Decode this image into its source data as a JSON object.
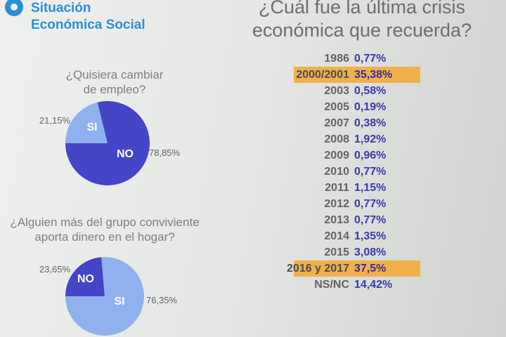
{
  "brand": {
    "line1": "Situación",
    "line2": "Económica Social"
  },
  "colors": {
    "dark": "#4545c8",
    "light": "#8fb2ee",
    "highlight": "#f0b14a",
    "brand": "#2a8fd6",
    "value": "#3a3aa8"
  },
  "chart_data": [
    {
      "type": "pie",
      "title": "¿Quisiera cambiar de empleo?",
      "title_lines": [
        "¿Quisiera cambiar",
        "de empleo?"
      ],
      "slices": [
        {
          "label": "SI",
          "value": 21.15,
          "display": "21,15%",
          "color": "#8fb2ee"
        },
        {
          "label": "NO",
          "value": 78.85,
          "display": "78,85%",
          "color": "#4545c8"
        }
      ]
    },
    {
      "type": "pie",
      "title": "¿Alguien más del grupo conviviente aporta dinero en el hogar?",
      "title_lines": [
        "¿Alguien más del grupo conviviente",
        "aporta dinero en el hogar?"
      ],
      "slices": [
        {
          "label": "NO",
          "value": 23.65,
          "display": "23,65%",
          "color": "#4545c8"
        },
        {
          "label": "SI",
          "value": 76.35,
          "display": "76,35%",
          "color": "#8fb2ee"
        }
      ]
    },
    {
      "type": "table",
      "title": "¿Cuál fue la última crisis económica que recuerda?",
      "title_lines": [
        "¿Cuál fue la última crisis",
        "económica que recuerda?"
      ],
      "rows": [
        {
          "year": "1986",
          "value": 0.77,
          "display": "0,77%",
          "highlight": false
        },
        {
          "year": "2000/2001",
          "value": 35.38,
          "display": "35,38%",
          "highlight": true
        },
        {
          "year": "2003",
          "value": 0.58,
          "display": "0,58%",
          "highlight": false
        },
        {
          "year": "2005",
          "value": 0.19,
          "display": "0,19%",
          "highlight": false
        },
        {
          "year": "2007",
          "value": 0.38,
          "display": "0,38%",
          "highlight": false
        },
        {
          "year": "2008",
          "value": 1.92,
          "display": "1,92%",
          "highlight": false
        },
        {
          "year": "2009",
          "value": 0.96,
          "display": "0,96%",
          "highlight": false
        },
        {
          "year": "2010",
          "value": 0.77,
          "display": "0,77%",
          "highlight": false
        },
        {
          "year": "2011",
          "value": 1.15,
          "display": "1,15%",
          "highlight": false
        },
        {
          "year": "2012",
          "value": 0.77,
          "display": "0,77%",
          "highlight": false
        },
        {
          "year": "2013",
          "value": 0.77,
          "display": "0,77%",
          "highlight": false
        },
        {
          "year": "2014",
          "value": 1.35,
          "display": "1,35%",
          "highlight": false
        },
        {
          "year": "2015",
          "value": 3.08,
          "display": "3,08%",
          "highlight": false
        },
        {
          "year": "2016 y 2017",
          "value": 37.5,
          "display": "37,5%",
          "highlight": true
        },
        {
          "year": "NS/NC",
          "value": 14.42,
          "display": "14,42%",
          "highlight": false
        }
      ]
    }
  ]
}
